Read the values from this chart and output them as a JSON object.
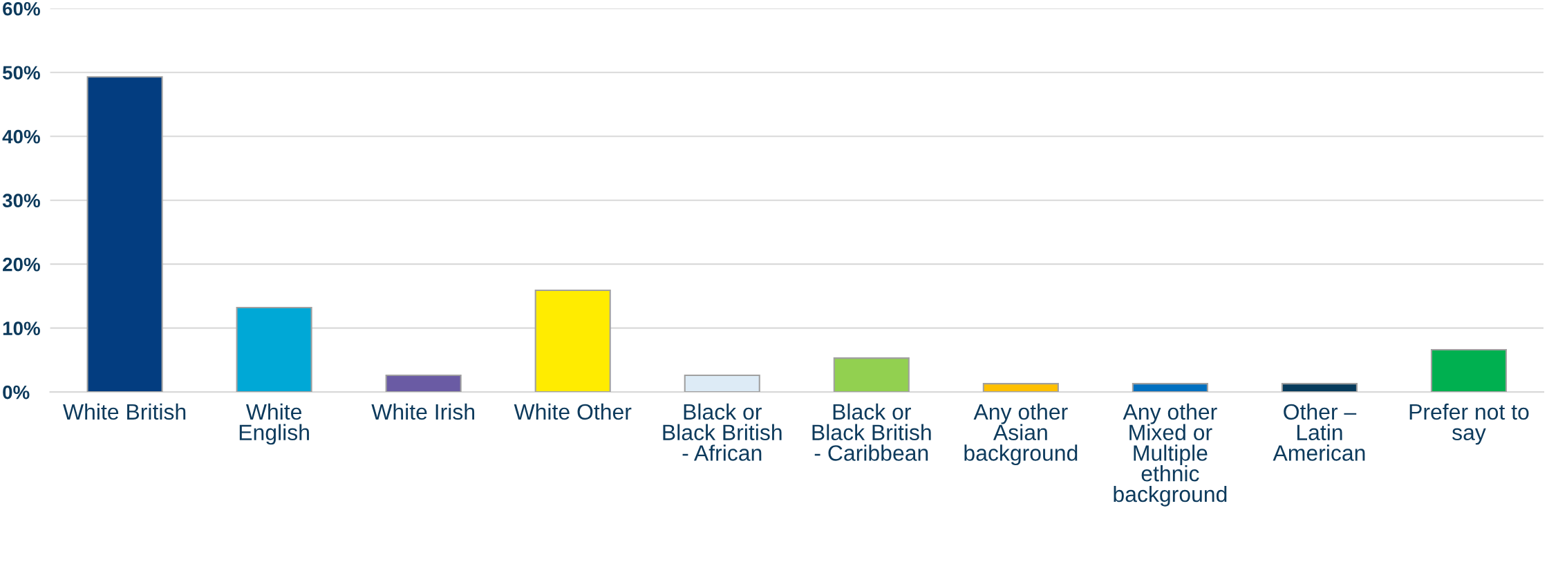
{
  "chart_data": {
    "type": "bar",
    "categories": [
      "White British",
      "White\nEnglish",
      "White Irish",
      "White Other",
      "Black or\nBlack British\n- African",
      "Black or\nBlack British\n- Caribbean",
      "Any other\nAsian\nbackground",
      "Any other\nMixed or\nMultiple\nethnic\nbackground",
      "Other –\nLatin\nAmerican",
      "Prefer not to\nsay"
    ],
    "values": [
      49.3,
      13.2,
      2.6,
      15.9,
      2.6,
      5.3,
      1.3,
      1.3,
      1.3,
      6.6
    ],
    "colors": [
      "#033d80",
      "#00a8d6",
      "#6a5ba4",
      "#ffec00",
      "#ddebf6",
      "#92d050",
      "#ffc000",
      "#0070c0",
      "#073b5c",
      "#00b050"
    ],
    "ylim": [
      0,
      60
    ],
    "yticks": [
      {
        "value": 0,
        "label": "0%"
      },
      {
        "value": 10,
        "label": "10%"
      },
      {
        "value": 20,
        "label": "20%"
      },
      {
        "value": 30,
        "label": "30%"
      },
      {
        "value": 40,
        "label": "40%"
      },
      {
        "value": 50,
        "label": "50%"
      },
      {
        "value": 60,
        "label": "60%"
      }
    ],
    "grid": "y",
    "legend": false
  }
}
